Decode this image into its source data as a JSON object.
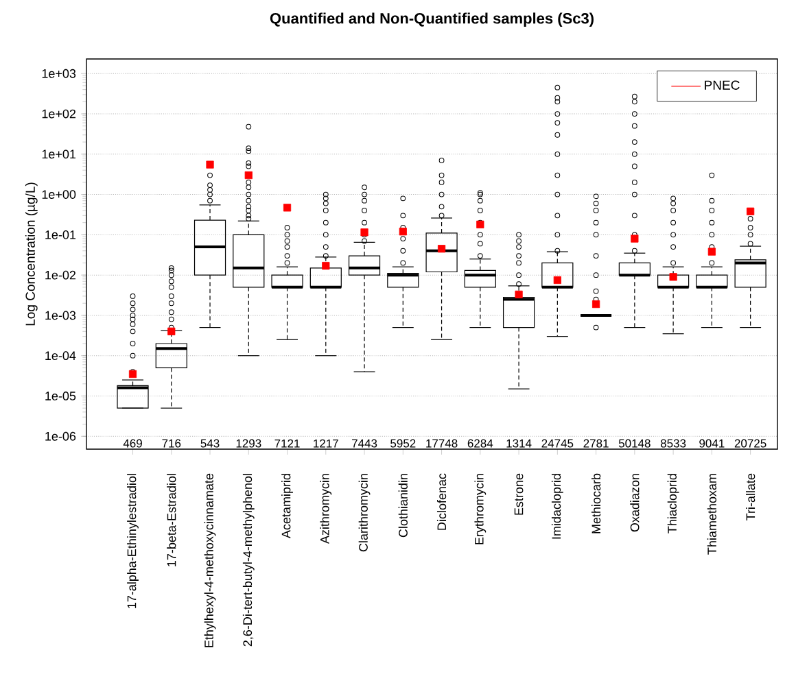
{
  "chart_data": {
    "type": "box",
    "title": "**Quantified and Non-Quantified samples (Sc3)**",
    "ylabel": "Log Concentration (µg/L)",
    "categories": [
      "17-alpha-Ethinylestradiol",
      "17-beta-Estradiol",
      "Ethylhexyl-4-methoxycinnamate",
      "2,6-Di-tert-butyl-4-methylphenol",
      "Acetamiprid",
      "Azithromycin",
      "Clarithromycin",
      "Clothianidin",
      "Diclofenac",
      "Erythromycin",
      "Estrone",
      "Imidacloprid",
      "Methiocarb",
      "Oxadiazon",
      "Thiacloprid",
      "Thiamethoxam",
      "Tri-allate"
    ],
    "log": "y",
    "grid": "y",
    "legend": "top right",
    "ylim": [
      4.8e-07,
      2300
    ],
    "yticks": [
      {
        "value": 1e-06,
        "label": "1e-06"
      },
      {
        "value": 1e-05,
        "label": "1e-05"
      },
      {
        "value": 0.0001,
        "label": "1e-04"
      },
      {
        "value": 0.001,
        "label": "1e-03"
      },
      {
        "value": 0.01,
        "label": "1e-02"
      },
      {
        "value": 0.1,
        "label": "1e-01"
      },
      {
        "value": 1,
        "label": "1e+00"
      },
      {
        "value": 10,
        "label": "1e+01"
      },
      {
        "value": 100,
        "label": "1e+02"
      },
      {
        "value": 1000,
        "label": "1e+03"
      }
    ],
    "series": [
      {
        "type": "box",
        "color": "#000000",
        "boxes": [
          {
            "low": 5e-06,
            "q1": 5e-06,
            "median": 1.6e-05,
            "q3": 1.8e-05,
            "high": 2.5e-05,
            "outliers": [
              4e-05,
              0.0001,
              0.0002,
              0.0004,
              0.0006,
              0.0008,
              0.001,
              0.0014,
              0.002,
              0.003
            ]
          },
          {
            "low": 5e-06,
            "q1": 5e-05,
            "median": 0.00015,
            "q3": 0.0002,
            "high": 0.00042,
            "outliers": [
              0.0005,
              0.0008,
              0.0012,
              0.002,
              0.003,
              0.005,
              0.007,
              0.01,
              0.013,
              0.015
            ]
          },
          {
            "low": 0.0005,
            "q1": 0.01,
            "median": 0.05,
            "q3": 0.23,
            "high": 0.55,
            "outliers": [
              0.7,
              1,
              1.3,
              1.7,
              3
            ]
          },
          {
            "low": 0.0001,
            "q1": 0.005,
            "median": 0.015,
            "q3": 0.1,
            "high": 0.22,
            "outliers": [
              0.25,
              0.3,
              0.4,
              0.5,
              0.7,
              1,
              1.5,
              2,
              5,
              6,
              12,
              14,
              48
            ]
          },
          {
            "low": 0.00025,
            "q1": 0.005,
            "median": 0.005,
            "q3": 0.01,
            "high": 0.016,
            "outliers": [
              0.02,
              0.03,
              0.05,
              0.07,
              0.1,
              0.15
            ]
          },
          {
            "low": 0.0001,
            "q1": 0.005,
            "median": 0.005,
            "q3": 0.015,
            "high": 0.028,
            "outliers": [
              0.03,
              0.05,
              0.1,
              0.2,
              0.4,
              0.6,
              0.8,
              1
            ]
          },
          {
            "low": 4e-05,
            "q1": 0.01,
            "median": 0.015,
            "q3": 0.03,
            "high": 0.065,
            "outliers": [
              0.07,
              0.1,
              0.2,
              0.4,
              0.7,
              1,
              1.5
            ]
          },
          {
            "low": 0.0005,
            "q1": 0.005,
            "median": 0.01,
            "q3": 0.011,
            "high": 0.016,
            "outliers": [
              0.02,
              0.04,
              0.08,
              0.15,
              0.3,
              0.8
            ]
          },
          {
            "low": 0.00025,
            "q1": 0.012,
            "median": 0.04,
            "q3": 0.11,
            "high": 0.26,
            "outliers": [
              0.3,
              0.5,
              1,
              2,
              3,
              7
            ]
          },
          {
            "low": 0.0005,
            "q1": 0.005,
            "median": 0.01,
            "q3": 0.013,
            "high": 0.025,
            "outliers": [
              0.03,
              0.06,
              0.1,
              0.2,
              0.4,
              0.7,
              1,
              1.1
            ]
          },
          {
            "low": 1.5e-05,
            "q1": 0.0005,
            "median": 0.0025,
            "q3": 0.0028,
            "high": 0.0054,
            "outliers": [
              0.006,
              0.01,
              0.02,
              0.03,
              0.05,
              0.07,
              0.1
            ]
          },
          {
            "low": 0.0003,
            "q1": 0.005,
            "median": 0.005,
            "q3": 0.02,
            "high": 0.038,
            "outliers": [
              0.04,
              0.1,
              0.3,
              1,
              3,
              10,
              30,
              60,
              100,
              200,
              250,
              450
            ]
          },
          {
            "low": 0.001,
            "q1": 0.001,
            "median": 0.001,
            "q3": 0.001,
            "high": 0.001,
            "outliers": [
              0.0005,
              0.0025,
              0.004,
              0.01,
              0.03,
              0.1,
              0.2,
              0.4,
              0.6,
              0.9
            ]
          },
          {
            "low": 0.0005,
            "q1": 0.01,
            "median": 0.01,
            "q3": 0.02,
            "high": 0.035,
            "outliers": [
              0.04,
              0.1,
              0.3,
              1,
              2,
              5,
              10,
              20,
              50,
              100,
              200,
              270
            ]
          },
          {
            "low": 0.00035,
            "q1": 0.005,
            "median": 0.005,
            "q3": 0.01,
            "high": 0.016,
            "outliers": [
              0.02,
              0.05,
              0.1,
              0.2,
              0.4,
              0.6,
              0.8
            ]
          },
          {
            "low": 0.0005,
            "q1": 0.005,
            "median": 0.005,
            "q3": 0.01,
            "high": 0.016,
            "outliers": [
              0.02,
              0.05,
              0.1,
              0.2,
              0.4,
              0.7,
              3
            ]
          },
          {
            "low": 0.0005,
            "q1": 0.005,
            "median": 0.02,
            "q3": 0.024,
            "high": 0.052,
            "outliers": [
              0.06,
              0.1,
              0.15,
              0.25
            ]
          }
        ]
      },
      {
        "type": "scatter",
        "name": "PNEC",
        "color": "#ff0000",
        "marker": "square",
        "values": [
          3.5e-05,
          0.0004,
          5.5,
          3,
          0.47,
          0.017,
          0.115,
          0.12,
          0.045,
          0.18,
          0.0033,
          0.0075,
          0.0019,
          0.08,
          0.009,
          0.038,
          0.38
        ]
      }
    ],
    "annotations": [
      "469",
      "716",
      "543",
      "1293",
      "7121",
      "1217",
      "7443",
      "5952",
      "17748",
      "6284",
      "1314",
      "24745",
      "2781",
      "50148",
      "8533",
      "9041",
      "20725"
    ]
  }
}
